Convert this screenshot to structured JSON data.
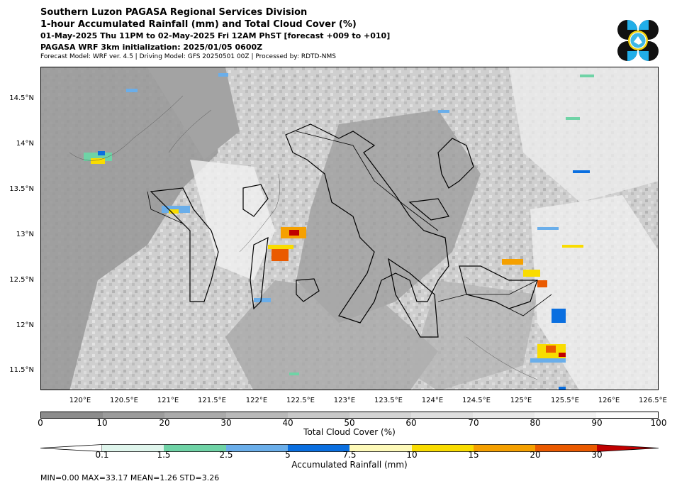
{
  "header": {
    "line1": "Southern Luzon PAGASA Regional Services Division",
    "line2": "1-hour Accumulated Rainfall (mm) and Total Cloud Cover (%)",
    "line3": "01-May-2025 Thu 11PM to 02-May-2025 Fri 12AM PhST [forecast +009 to +010]",
    "line4": "PAGASA WRF 3km initialization: 2025/01/05 0600Z",
    "line5": "Forecast Model: WRF ver. 4.5 | Driving Model: GFS 20250501 00Z | Processed by: RDTD-NMS"
  },
  "map": {
    "y_ticks": [
      "14.5°N",
      "14°N",
      "13.5°N",
      "13°N",
      "12.5°N",
      "12°N",
      "11.5°N"
    ],
    "x_ticks": [
      "120°E",
      "120.5°E",
      "121°E",
      "121.5°E",
      "122°E",
      "122.5°E",
      "123°E",
      "123.5°E",
      "124°E",
      "124.5°E",
      "125°E",
      "125.5°E",
      "126°E",
      "126.5°E"
    ]
  },
  "cloud_colorbar": {
    "title": "Total Cloud Cover (%)",
    "ticks": [
      "0",
      "10",
      "20",
      "30",
      "40",
      "50",
      "60",
      "70",
      "80",
      "90",
      "100"
    ],
    "colors": [
      "#8c8c8c",
      "#9b9b9b",
      "#aaaaaa",
      "#b9b9b9",
      "#c8c8c8",
      "#d4d4d4",
      "#dfdfdf",
      "#e9e9e9",
      "#f3f3f3",
      "#fdfdfd"
    ]
  },
  "rain_colorbar": {
    "title": "Accumulated Rainfall (mm)",
    "ticks": [
      "0.1",
      "1.5",
      "2.5",
      "5",
      "7.5",
      "10",
      "15",
      "20",
      "30"
    ],
    "colors": [
      "#ffffff",
      "#dff5ec",
      "#6fd3a6",
      "#6aaeea",
      "#0a6fe0",
      "#fdf9b8",
      "#f9dc00",
      "#f5a000",
      "#ea5a00",
      "#c00000"
    ]
  },
  "stats": "MIN=0.00   MAX=33.17   MEAN=1.26   STD=3.26"
}
